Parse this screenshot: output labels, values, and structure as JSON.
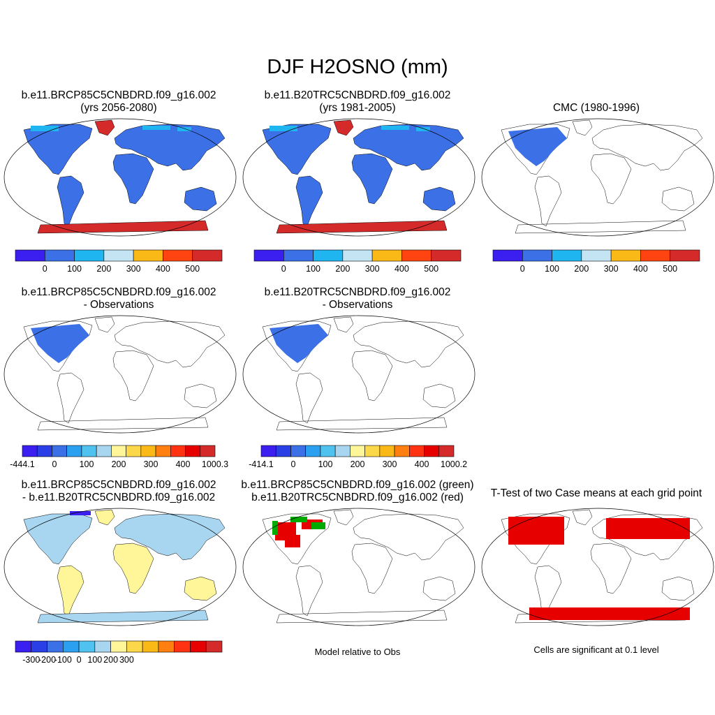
{
  "main_title": "DJF H2OSNO (mm)",
  "panels": [
    {
      "title_line1": "b.e11.BRCP85C5CNBDRD.f09_g16.002",
      "title_line2": "(yrs 2056-2080)"
    },
    {
      "title_line1": "b.e11.B20TRC5CNBDRD.f09_g16.002",
      "title_line2": "(yrs 1981-2005)"
    },
    {
      "title_line1": "CMC (1980-1996)",
      "title_line2": ""
    },
    {
      "title_line1": "b.e11.BRCP85C5CNBDRD.f09_g16.002",
      "title_line2": "- Observations"
    },
    {
      "title_line1": "b.e11.B20TRC5CNBDRD.f09_g16.002",
      "title_line2": "- Observations"
    },
    {
      "title_line1": "b.e11.BRCP85C5CNBDRD.f09_g16.002",
      "title_line2": "- b.e11.B20TRC5CNBDRD.f09_g16.002"
    },
    {
      "title_line1": "b.e11.BRCP85C5CNBDRD.f09_g16.002 (green)",
      "title_line2": "b.e11.B20TRC5CNBDRD.f09_g16.002 (red)"
    },
    {
      "title_line1": "T-Test of two Case means at each grid point",
      "title_line2": ""
    }
  ],
  "captions": {
    "model_relative": "Model relative to Obs",
    "significance": "Cells are significant at 0.1 level"
  },
  "colorbars": {
    "abs": {
      "colors": [
        "#3b1ff0",
        "#3b70e6",
        "#1fb5f0",
        "#c4e4f4",
        "#fbb917",
        "#ff4411",
        "#d42a2a"
      ],
      "labels": [
        "0",
        "100",
        "200",
        "300",
        "400",
        "500"
      ]
    },
    "diff1": {
      "colors": [
        "#3b1ff0",
        "#2b3fe6",
        "#3b70e6",
        "#2b9ff0",
        "#4fc2f0",
        "#a8d6f0",
        "#fff599",
        "#fbd84a",
        "#fbb917",
        "#ff7f11",
        "#ff3311",
        "#e60000",
        "#d42a2a"
      ],
      "labels": [
        "-444.1",
        "0",
        "100",
        "200",
        "300",
        "400",
        "1000.3"
      ]
    },
    "diff2": {
      "colors": [
        "#3b1ff0",
        "#2b3fe6",
        "#3b70e6",
        "#2b9ff0",
        "#4fc2f0",
        "#a8d6f0",
        "#fff599",
        "#fbd84a",
        "#fbb917",
        "#ff7f11",
        "#ff3311",
        "#e60000",
        "#d42a2a"
      ],
      "labels": [
        "-414.1",
        "0",
        "100",
        "200",
        "300",
        "400",
        "1000.2"
      ]
    },
    "rcp_hist": {
      "colors": [
        "#3b1ff0",
        "#2b3fe6",
        "#3b70e6",
        "#2b9ff0",
        "#4fc2f0",
        "#a8d6f0",
        "#fff599",
        "#fbd84a",
        "#fbb917",
        "#ff7f11",
        "#ff3311",
        "#e60000",
        "#d42a2a"
      ],
      "labels": [
        "-300",
        "-200",
        "-100",
        "0",
        "100",
        "200",
        "300"
      ]
    }
  },
  "colors": {
    "land_fill": "#3b70e6",
    "snow_red": "#d42a2a",
    "obs_blue": "#3b70e6",
    "diff_yellow": "#fff599",
    "diff_lightblue": "#a8d6f0",
    "ttest_red": "#e60000",
    "green_case": "#00aa00"
  }
}
